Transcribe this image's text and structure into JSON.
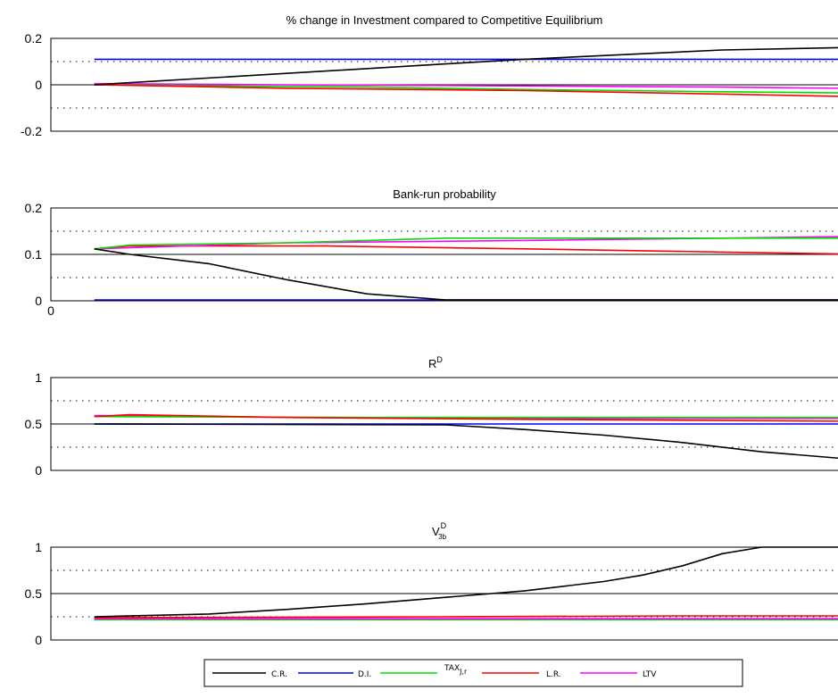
{
  "colors": {
    "C.R.": "#000000",
    "D.I.": "#0000ff",
    "TAX_J,r": "#00e000",
    "L.R.": "#ff0000",
    "LTV": "#ff00ff",
    "frame": "#000000",
    "dotted": "#000000"
  },
  "legend": {
    "placement": "bottom-center",
    "entries": [
      {
        "key": "C.R.",
        "label": "C.R."
      },
      {
        "key": "D.I.",
        "label": "D.I."
      },
      {
        "key": "TAX_J,r",
        "label": "TAX",
        "sub": "J,r"
      },
      {
        "key": "L.R.",
        "label": "L.R."
      },
      {
        "key": "LTV",
        "label": "LTV"
      }
    ]
  },
  "chart_data": [
    {
      "type": "line",
      "title": "% change in Investment compared to Competitive Equilibrium",
      "xlim": [
        0,
        1
      ],
      "ylim": [
        -0.2,
        0.2
      ],
      "yticks": [
        "0.2",
        "0",
        "-0.2"
      ],
      "ytick_values": [
        0.2,
        0,
        -0.2
      ],
      "xticks": [],
      "solid_ref": [
        0
      ],
      "dotted_ref": [
        0.1,
        -0.1
      ],
      "series": [
        {
          "key": "D.I.",
          "x": [
            0.055,
            0.6,
            1.0
          ],
          "y": [
            0.11,
            0.11,
            0.11
          ]
        },
        {
          "key": "LTV",
          "x": [
            0.055,
            0.3,
            0.6,
            0.85,
            1.0
          ],
          "y": [
            0.005,
            0.0,
            -0.005,
            -0.01,
            -0.015
          ]
        },
        {
          "key": "TAX_J,r",
          "x": [
            0.055,
            0.4,
            0.6,
            0.85,
            1.0
          ],
          "y": [
            0.0,
            -0.01,
            -0.02,
            -0.03,
            -0.035
          ]
        },
        {
          "key": "L.R.",
          "x": [
            0.055,
            0.3,
            0.6,
            0.85,
            1.0
          ],
          "y": [
            0.0,
            -0.015,
            -0.025,
            -0.04,
            -0.05
          ]
        },
        {
          "key": "C.R.",
          "x": [
            0.055,
            0.5,
            0.6,
            0.85,
            1.0
          ],
          "y": [
            0.0,
            0.09,
            0.11,
            0.15,
            0.16
          ]
        }
      ]
    },
    {
      "type": "line",
      "title": "Bank-run probability",
      "xlim": [
        0,
        1
      ],
      "ylim": [
        0,
        0.2
      ],
      "yticks": [
        "0.2",
        "0.1",
        "0"
      ],
      "ytick_values": [
        0.2,
        0.1,
        0
      ],
      "xticks": [
        "0"
      ],
      "xtick_values": [
        0
      ],
      "solid_ref": [
        0.1
      ],
      "dotted_ref": [
        0.15,
        0.05
      ],
      "series": [
        {
          "key": "D.I.",
          "x": [
            0.055,
            1.0
          ],
          "y": [
            0.002,
            0.002
          ]
        },
        {
          "key": "L.R.",
          "x": [
            0.055,
            0.1,
            0.35,
            0.6,
            0.85,
            1.0
          ],
          "y": [
            0.112,
            0.118,
            0.118,
            0.112,
            0.105,
            0.101
          ]
        },
        {
          "key": "LTV",
          "x": [
            0.055,
            0.3,
            0.6,
            0.85,
            1.0
          ],
          "y": [
            0.112,
            0.125,
            0.13,
            0.135,
            0.138
          ]
        },
        {
          "key": "TAX_J,r",
          "x": [
            0.055,
            0.1,
            0.3,
            0.5,
            0.9,
            1.0
          ],
          "y": [
            0.112,
            0.12,
            0.125,
            0.135,
            0.135,
            0.135
          ]
        },
        {
          "key": "C.R.",
          "x": [
            0.055,
            0.1,
            0.2,
            0.3,
            0.4,
            0.5,
            1.0
          ],
          "y": [
            0.112,
            0.1,
            0.08,
            0.045,
            0.015,
            0.002,
            0.002
          ]
        }
      ]
    },
    {
      "type": "line",
      "title": "R",
      "title_sup": "D",
      "xlim": [
        0,
        1
      ],
      "ylim": [
        0,
        1
      ],
      "yticks": [
        "1",
        "0.5",
        "0"
      ],
      "ytick_values": [
        1,
        0.5,
        0
      ],
      "xticks": [],
      "solid_ref": [
        0.5
      ],
      "dotted_ref": [
        0.75,
        0.25
      ],
      "series": [
        {
          "key": "D.I.",
          "x": [
            0.055,
            1.0
          ],
          "y": [
            0.5,
            0.5
          ]
        },
        {
          "key": "LTV",
          "x": [
            0.055,
            0.3,
            0.6,
            1.0
          ],
          "y": [
            0.59,
            0.57,
            0.56,
            0.56
          ]
        },
        {
          "key": "TAX_J,r",
          "x": [
            0.055,
            0.4,
            0.7,
            1.0
          ],
          "y": [
            0.58,
            0.57,
            0.57,
            0.57
          ]
        },
        {
          "key": "L.R.",
          "x": [
            0.055,
            0.1,
            0.3,
            0.6,
            1.0
          ],
          "y": [
            0.58,
            0.6,
            0.57,
            0.55,
            0.53
          ]
        },
        {
          "key": "C.R.",
          "x": [
            0.055,
            0.5,
            0.6,
            0.7,
            0.8,
            0.9,
            1.0
          ],
          "y": [
            0.5,
            0.49,
            0.44,
            0.38,
            0.3,
            0.2,
            0.13
          ]
        }
      ]
    },
    {
      "type": "line",
      "title": "V",
      "title_sup": "D",
      "title_sub": "3b",
      "xlim": [
        0,
        1
      ],
      "ylim": [
        0,
        1
      ],
      "yticks": [
        "1",
        "0.5",
        "0"
      ],
      "ytick_values": [
        1,
        0.5,
        0
      ],
      "xticks": [],
      "solid_ref": [
        0.5
      ],
      "dotted_ref": [
        0.75,
        0.25
      ],
      "series": [
        {
          "key": "D.I.",
          "x": [
            0.055,
            1.0
          ],
          "y": [
            0.22,
            0.22
          ]
        },
        {
          "key": "TAX_J,r",
          "x": [
            0.055,
            1.0
          ],
          "y": [
            0.22,
            0.22
          ]
        },
        {
          "key": "LTV",
          "x": [
            0.055,
            1.0
          ],
          "y": [
            0.23,
            0.23
          ]
        },
        {
          "key": "L.R.",
          "x": [
            0.055,
            0.5,
            0.8,
            1.0
          ],
          "y": [
            0.24,
            0.25,
            0.26,
            0.26
          ]
        },
        {
          "key": "C.R.",
          "x": [
            0.055,
            0.2,
            0.3,
            0.4,
            0.5,
            0.6,
            0.7,
            0.75,
            0.8,
            0.85,
            0.9,
            1.0
          ],
          "y": [
            0.25,
            0.28,
            0.33,
            0.39,
            0.46,
            0.53,
            0.63,
            0.7,
            0.8,
            0.93,
            1.0,
            1.0
          ]
        }
      ]
    }
  ]
}
